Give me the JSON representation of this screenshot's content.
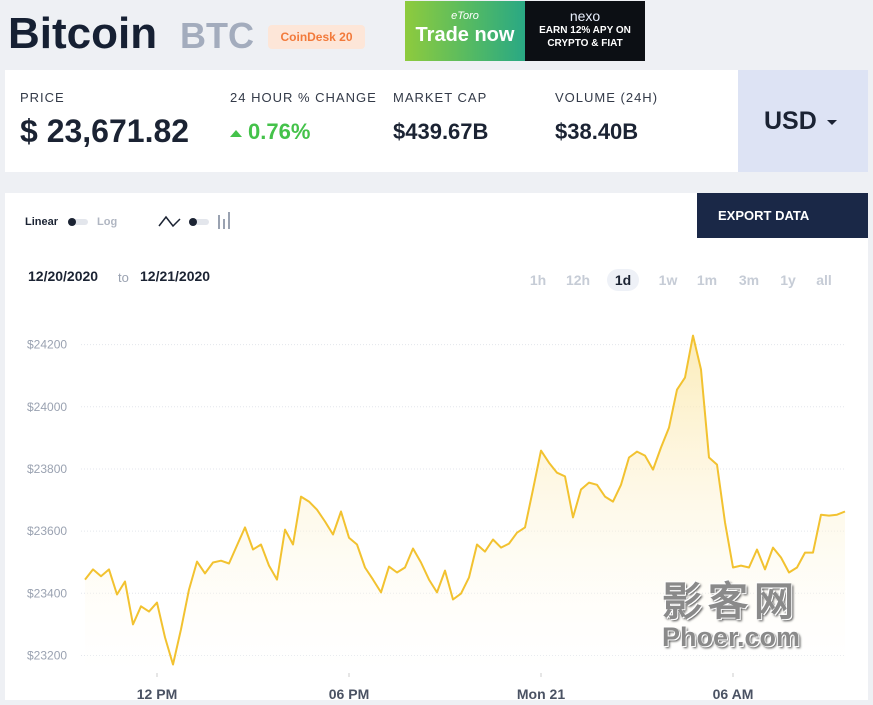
{
  "header": {
    "title": "Bitcoin",
    "symbol": "BTC",
    "badge": "CoinDesk 20"
  },
  "ads": {
    "etoro": {
      "brand": "eToro",
      "cta": "Trade now"
    },
    "nexo": {
      "brand": "nexo",
      "line1": "EARN 12% APY ON",
      "line2": "CRYPTO & FIAT"
    }
  },
  "stats": [
    {
      "label": "PRICE",
      "value": "$ 23,671.82"
    },
    {
      "label": "24 HOUR % CHANGE",
      "value": "0.76%"
    },
    {
      "label": "MARKET CAP",
      "value": "$439.67B"
    },
    {
      "label": "VOLUME (24H)",
      "value": "$38.40B"
    }
  ],
  "currency": "USD",
  "controls": {
    "linear": "Linear",
    "log": "Log",
    "export": "EXPORT DATA",
    "from": "12/20/2020",
    "to_word": "to",
    "to": "12/21/2020",
    "ranges": [
      "1h",
      "12h",
      "1d",
      "1w",
      "1m",
      "3m",
      "1y",
      "all"
    ],
    "active_range": "1d"
  },
  "watermark": {
    "line1": "影客网",
    "line2": "Phoer.com"
  },
  "chart_data": {
    "type": "area",
    "color": "#f2c230",
    "grid": true,
    "x": [
      9.75,
      10,
      10.25,
      10.5,
      10.75,
      11,
      11.25,
      11.5,
      11.75,
      12,
      12.25,
      12.5,
      12.75,
      13,
      13.25,
      13.5,
      13.75,
      14,
      14.25,
      14.5,
      14.75,
      15,
      15.25,
      15.5,
      15.75,
      16,
      16.25,
      16.5,
      16.75,
      17,
      17.25,
      17.5,
      17.75,
      18,
      18.25,
      18.5,
      18.75,
      19,
      19.25,
      19.5,
      19.75,
      20,
      20.25,
      20.5,
      20.75,
      21,
      21.25,
      21.5,
      21.75,
      22,
      22.25,
      22.5,
      22.75,
      23,
      23.25,
      23.5,
      23.75,
      24,
      24.25,
      24.5,
      24.75,
      25,
      25.25,
      25.5,
      25.75,
      26,
      26.25,
      26.5,
      26.75,
      27,
      27.25,
      27.5,
      27.75,
      28,
      28.25,
      28.5,
      28.75,
      29,
      29.25,
      29.5,
      29.75,
      30,
      30.25,
      30.5,
      30.75,
      31,
      31.25,
      31.5,
      31.75,
      32,
      32.25,
      32.5,
      32.75,
      33,
      33.25,
      33.5
    ],
    "values": [
      23444,
      23477,
      23455,
      23477,
      23396,
      23438,
      23300,
      23358,
      23341,
      23370,
      23258,
      23171,
      23284,
      23412,
      23502,
      23464,
      23499,
      23505,
      23496,
      23554,
      23612,
      23541,
      23557,
      23489,
      23444,
      23605,
      23557,
      23711,
      23695,
      23669,
      23631,
      23589,
      23663,
      23579,
      23557,
      23483,
      23444,
      23403,
      23486,
      23467,
      23483,
      23544,
      23499,
      23444,
      23403,
      23473,
      23380,
      23399,
      23451,
      23557,
      23534,
      23573,
      23547,
      23560,
      23595,
      23612,
      23734,
      23859,
      23820,
      23788,
      23776,
      23644,
      23734,
      23756,
      23749,
      23711,
      23695,
      23749,
      23837,
      23856,
      23843,
      23798,
      23869,
      23933,
      24055,
      24094,
      24229,
      24120,
      23837,
      23814,
      23628,
      23483,
      23489,
      23483,
      23541,
      23477,
      23547,
      23515,
      23467,
      23483,
      23531,
      23531,
      23653,
      23650,
      23653,
      23663
    ],
    "xlim": [
      9.75,
      33.5
    ],
    "xticks": [
      {
        "value": 12,
        "label": "12 PM"
      },
      {
        "value": 18,
        "label": "06 PM"
      },
      {
        "value": 24,
        "label": "Mon 21"
      },
      {
        "value": 30,
        "label": "06 AM"
      }
    ],
    "ylim": [
      23150,
      24350
    ],
    "yticks": [
      {
        "value": 23200,
        "label": "$23200"
      },
      {
        "value": 23400,
        "label": "$23400"
      },
      {
        "value": 23600,
        "label": "$23600"
      },
      {
        "value": 23800,
        "label": "$23800"
      },
      {
        "value": 24000,
        "label": "$24000"
      },
      {
        "value": 24200,
        "label": "$24200"
      }
    ]
  }
}
